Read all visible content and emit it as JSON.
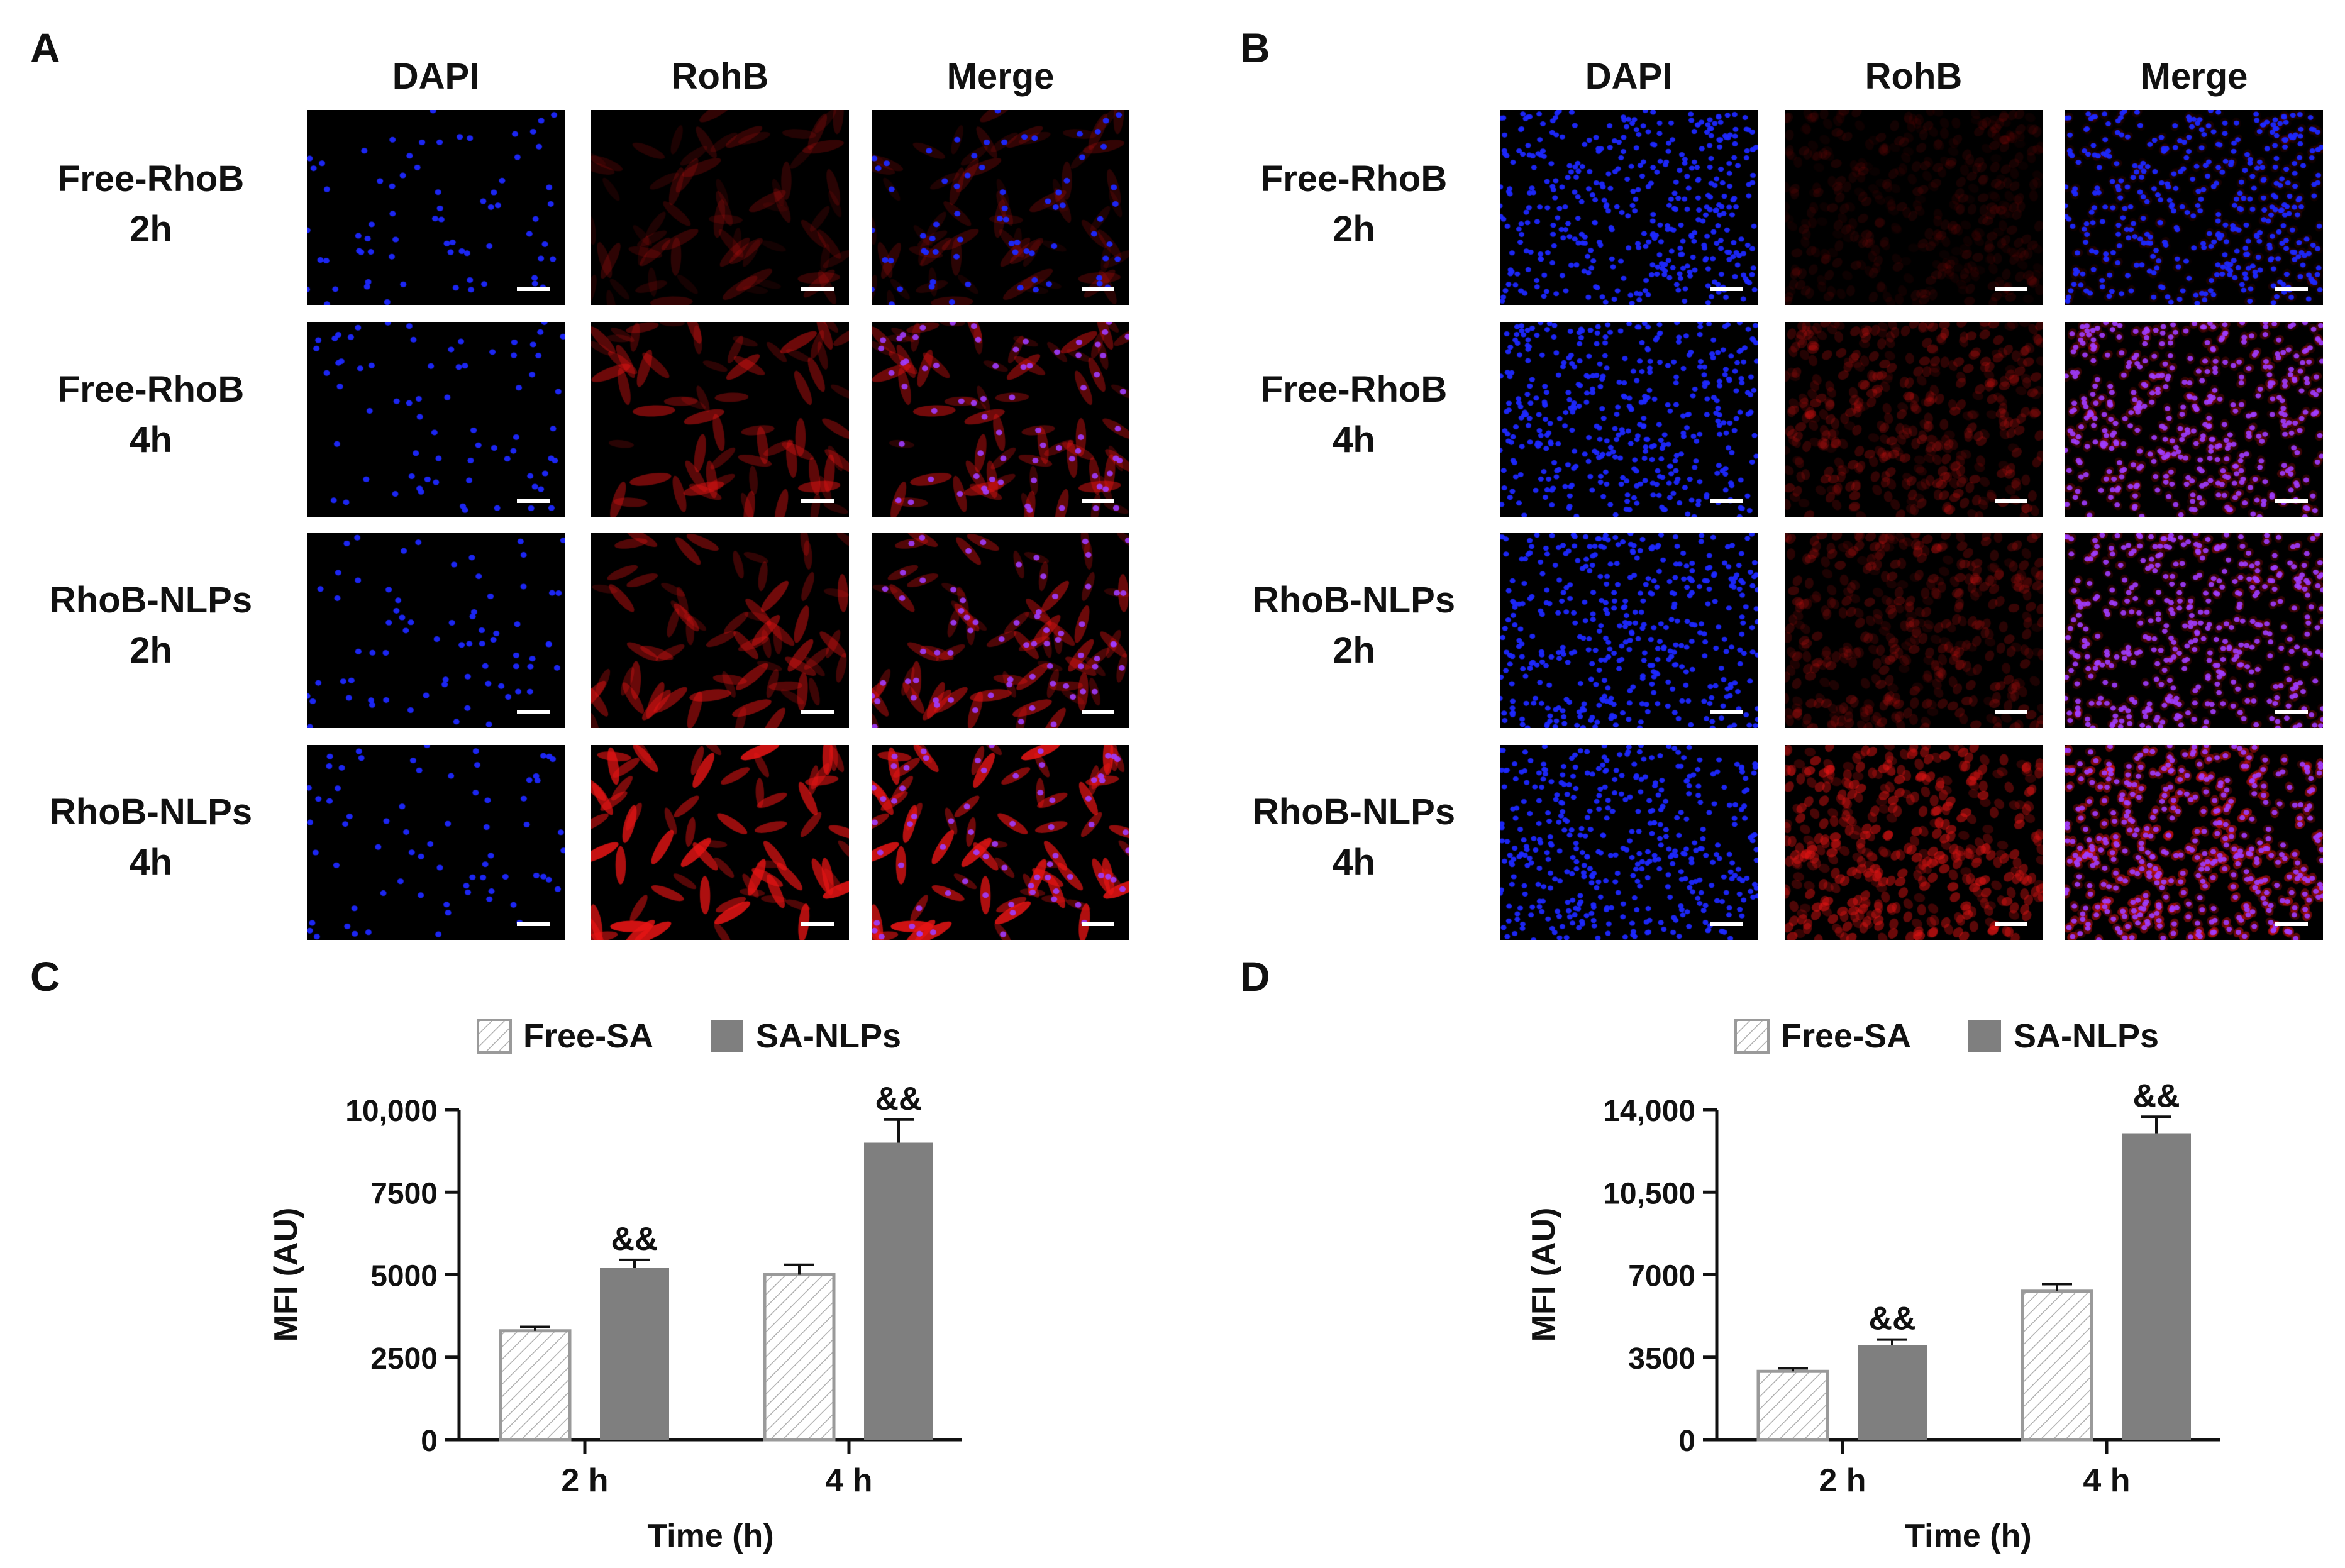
{
  "panels": {
    "A": "A",
    "B": "B",
    "C": "C",
    "D": "D"
  },
  "micro_columns": [
    "DAPI",
    "RohB",
    "Merge"
  ],
  "micro_rows": [
    {
      "line1": "Free-RhoB",
      "line2": "2h"
    },
    {
      "line1": "Free-RhoB",
      "line2": "4h"
    },
    {
      "line1": "RhoB-NLPs",
      "line2": "2h"
    },
    {
      "line1": "RhoB-NLPs",
      "line2": "4h"
    }
  ],
  "micro_intensity": {
    "A": [
      0.25,
      0.55,
      0.6,
      1.0
    ],
    "B": [
      0.2,
      0.5,
      0.45,
      1.0
    ]
  },
  "colors": {
    "free_bar_stroke": "#9a9a9a",
    "free_bar_hatch": "#b0b0b0",
    "nlp_bar_fill": "#7f7f7f",
    "axis": "#111111"
  },
  "chart_data": [
    {
      "panel": "C",
      "type": "bar",
      "categories": [
        "2 h",
        "4 h"
      ],
      "series": [
        {
          "name": "Free-SA",
          "values": [
            3300,
            5000
          ],
          "errors": [
            120,
            300
          ]
        },
        {
          "name": "SA-NLPs",
          "values": [
            5200,
            9000
          ],
          "errors": [
            250,
            700
          ]
        }
      ],
      "annotations": [
        {
          "category": "2 h",
          "series": "SA-NLPs",
          "text": "&&"
        },
        {
          "category": "4 h",
          "series": "SA-NLPs",
          "text": "&&"
        }
      ],
      "xlabel": "Time (h)",
      "ylabel": "MFI (AU)",
      "ylim": [
        0,
        10000
      ],
      "yticks": [
        "0",
        "2500",
        "5000",
        "7500",
        "10,000"
      ],
      "ytick_values": [
        0,
        2500,
        5000,
        7500,
        10000
      ],
      "legend": "top"
    },
    {
      "panel": "D",
      "type": "bar",
      "categories": [
        "2 h",
        "4 h"
      ],
      "series": [
        {
          "name": "Free-SA",
          "values": [
            2900,
            6300
          ],
          "errors": [
            130,
            300
          ]
        },
        {
          "name": "SA-NLPs",
          "values": [
            4000,
            13000
          ],
          "errors": [
            250,
            700
          ]
        }
      ],
      "annotations": [
        {
          "category": "2 h",
          "series": "SA-NLPs",
          "text": "&&"
        },
        {
          "category": "4 h",
          "series": "SA-NLPs",
          "text": "&&"
        }
      ],
      "xlabel": "Time (h)",
      "ylabel": "MFI (AU)",
      "ylim": [
        0,
        14000
      ],
      "yticks": [
        "0",
        "3500",
        "7000",
        "10,500",
        "14,000"
      ],
      "ytick_values": [
        0,
        3500,
        7000,
        10500,
        14000
      ],
      "legend": "top"
    }
  ]
}
